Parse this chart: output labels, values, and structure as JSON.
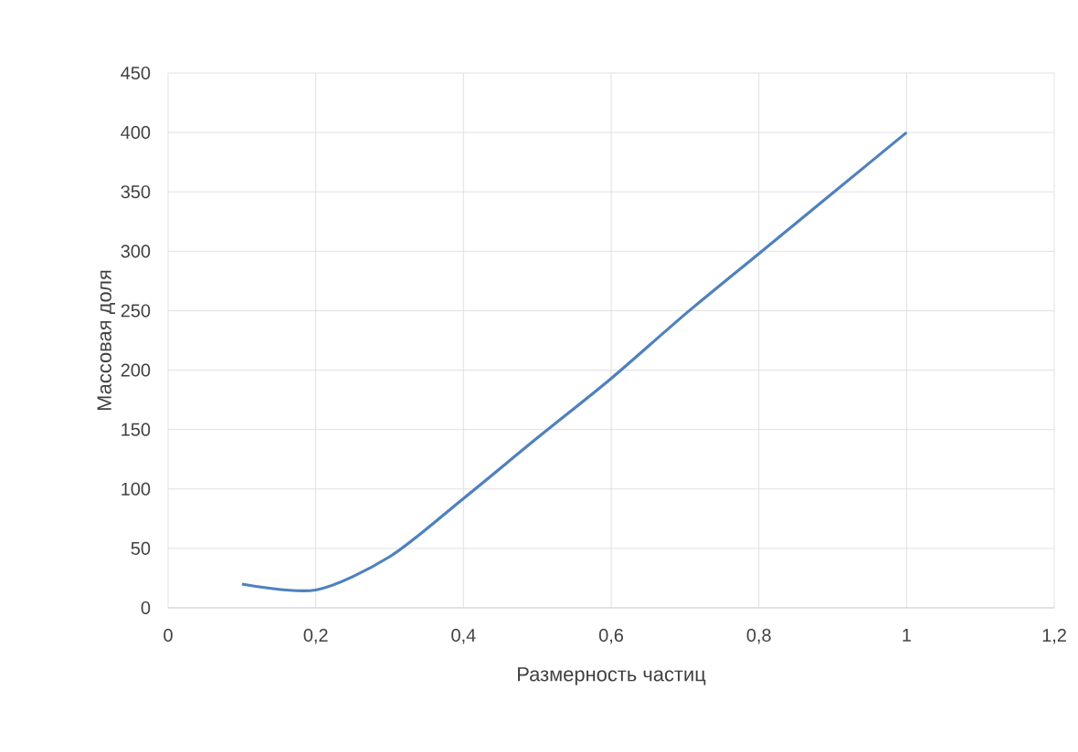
{
  "chart_data": {
    "type": "line",
    "xlabel": "Размерность частиц",
    "ylabel": "Массовая доля",
    "x": [
      0.1,
      0.2,
      0.3,
      0.4,
      0.5,
      0.6,
      0.7,
      0.8,
      0.9,
      1
    ],
    "series": [
      {
        "color": "#4f81bd",
        "values": [
          20,
          15,
          43,
          92,
          143,
          193,
          247,
          298,
          349,
          400
        ]
      }
    ],
    "xlim": [
      0,
      1.2
    ],
    "ylim": [
      0,
      450
    ],
    "xticks": [
      0,
      {
        "value": 0.2,
        "label": "0,2"
      },
      {
        "value": 0.4,
        "label": "0,4"
      },
      {
        "value": 0.6,
        "label": "0,6"
      },
      {
        "value": 0.8,
        "label": "0,8"
      },
      1,
      {
        "value": 1.2,
        "label": "1,2"
      }
    ],
    "yticks": [
      0,
      50,
      100,
      150,
      200,
      250,
      300,
      350,
      400,
      450
    ],
    "grid": true,
    "line_style": "solid"
  }
}
